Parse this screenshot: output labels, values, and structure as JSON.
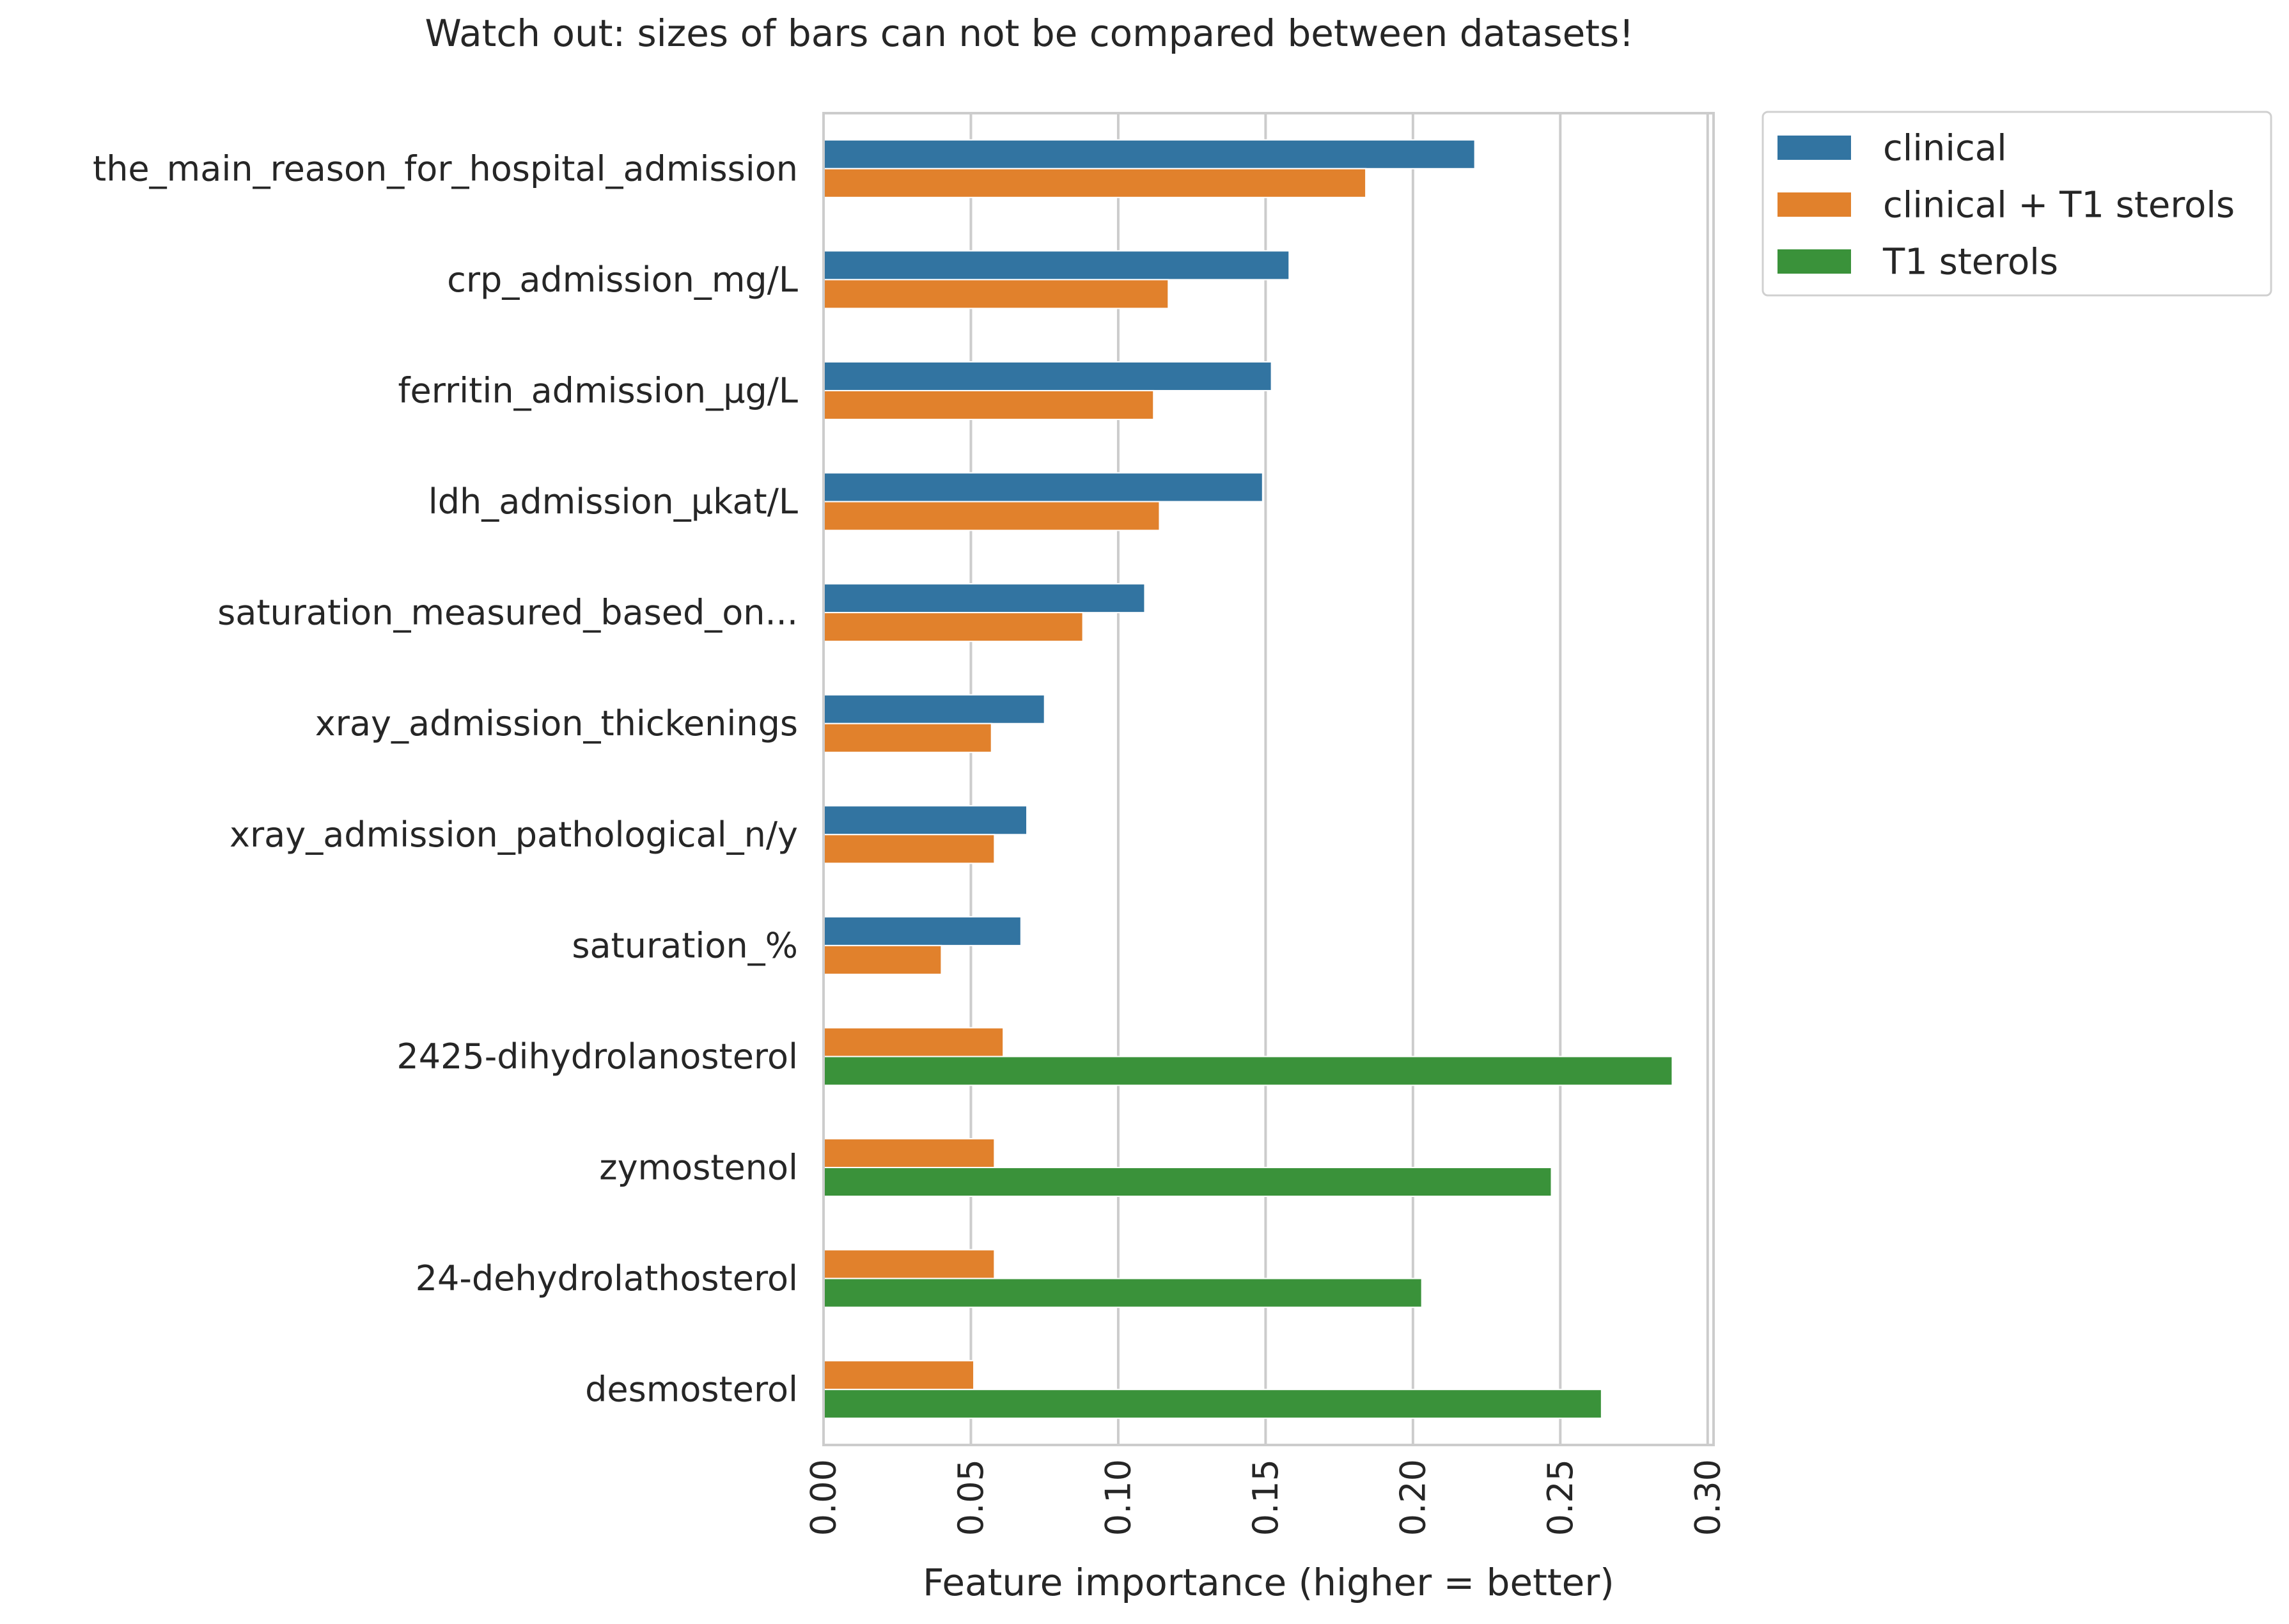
{
  "chart_data": {
    "type": "bar",
    "orientation": "horizontal",
    "title": "Watch out: sizes of bars can not be compared between datasets!",
    "xlabel": "Feature importance (higher = better)",
    "ylabel": "",
    "xlim": [
      0,
      0.302
    ],
    "xticks": [
      "0.00",
      "0.05",
      "0.10",
      "0.15",
      "0.20",
      "0.25",
      "0.30"
    ],
    "grid": "vertical",
    "legend_position": "outside-top-right",
    "categories": [
      "the_main_reason_for_hospital_admission",
      "crp_admission_mg/L",
      "ferritin_admission_µg/L",
      "ldh_admission_µkat/L",
      "saturation_measured_based_on...",
      "xray_admission_thickenings",
      "xray_admission_pathological_n/y",
      "saturation_%",
      "2425-dihydrolanosterol",
      "zymostenol",
      "24-dehydrolathosterol",
      "desmosterol"
    ],
    "series": [
      {
        "name": "clinical",
        "color": "#3274a1",
        "values": [
          0.221,
          0.158,
          0.152,
          0.149,
          0.109,
          0.075,
          0.069,
          0.067,
          null,
          null,
          null,
          null
        ]
      },
      {
        "name": "clinical + T1 sterols",
        "color": "#e1812c",
        "values": [
          0.184,
          0.117,
          0.112,
          0.114,
          0.088,
          0.057,
          0.058,
          0.04,
          0.061,
          0.058,
          0.058,
          0.051
        ]
      },
      {
        "name": "T1 sterols",
        "color": "#3a923a",
        "values": [
          null,
          null,
          null,
          null,
          null,
          null,
          null,
          null,
          0.288,
          0.247,
          0.203,
          0.264
        ]
      }
    ]
  }
}
